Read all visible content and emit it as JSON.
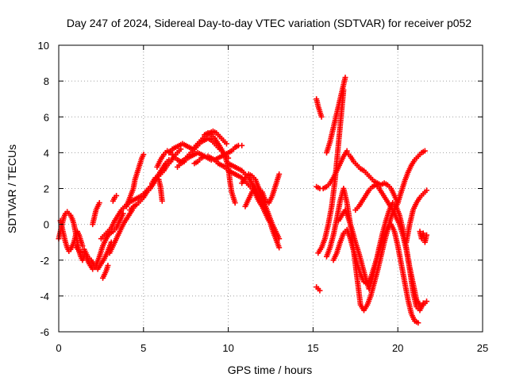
{
  "chart_data": {
    "type": "scatter",
    "title": "Day 247 of 2024, Sidereal Day-to-day VTEC variation (SDTVAR) for receiver p052",
    "xlabel": "GPS time / hours",
    "ylabel": "SDTVAR / TECUs",
    "xlim": [
      0,
      25
    ],
    "ylim": [
      -6,
      10
    ],
    "xticks": [
      0,
      5,
      10,
      15,
      20,
      25
    ],
    "yticks": [
      -6,
      -4,
      -2,
      0,
      2,
      4,
      6,
      8,
      10
    ],
    "xtick_labels": [
      "0",
      "5",
      "10",
      "15",
      "20",
      "25"
    ],
    "ytick_labels": [
      "-6",
      "-4",
      "-2",
      "0",
      "2",
      "4",
      "6",
      "8",
      "10"
    ],
    "grid": true,
    "marker": "+",
    "color": "#ff0000",
    "series": [
      {
        "x": [
          0.0,
          0.1,
          0.2,
          0.3,
          0.4,
          0.5,
          0.6,
          0.7,
          0.8,
          0.9,
          1.0,
          1.1,
          1.2,
          1.3,
          1.4,
          1.5
        ],
        "y": [
          -0.8,
          -0.4,
          0.0,
          0.4,
          0.6,
          0.7,
          0.6,
          0.5,
          0.3,
          0.0,
          -0.5,
          -1.0,
          -1.5,
          -1.8,
          -2.0,
          -1.8
        ]
      },
      {
        "x": [
          0.1,
          0.2,
          0.3,
          0.4,
          0.5,
          0.6,
          0.7,
          0.8,
          0.9,
          1.0,
          1.1,
          1.2,
          1.3,
          1.4
        ],
        "y": [
          0.2,
          -0.2,
          -0.6,
          -1.0,
          -1.3,
          -1.5,
          -1.4,
          -1.2,
          -1.0,
          -0.6,
          -0.4,
          -0.6,
          -0.9,
          -1.2
        ]
      },
      {
        "x": [
          1.0,
          1.2,
          1.4,
          1.6,
          1.8,
          2.0,
          2.2,
          2.4,
          2.6,
          2.8,
          3.0,
          3.2,
          3.4,
          3.6,
          3.8
        ],
        "y": [
          -1.2,
          -1.5,
          -1.6,
          -1.8,
          -2.2,
          -2.5,
          -2.3,
          -1.8,
          -1.2,
          -0.8,
          -0.5,
          -0.4,
          -0.2,
          0.2,
          0.6
        ]
      },
      {
        "x": [
          1.5,
          1.7,
          1.9,
          2.1,
          2.3,
          2.5,
          2.7,
          2.9,
          3.1
        ],
        "y": [
          -1.4,
          -1.8,
          -2.0,
          -2.3,
          -2.5,
          -2.2,
          -1.9,
          -1.5,
          -1.0
        ]
      },
      {
        "x": [
          2.0,
          2.1,
          2.2,
          2.3,
          2.4
        ],
        "y": [
          0.0,
          0.4,
          0.8,
          1.0,
          1.2
        ]
      },
      {
        "x": [
          2.6,
          2.7,
          2.8,
          2.9
        ],
        "y": [
          -3.0,
          -2.8,
          -2.6,
          -2.3
        ]
      },
      {
        "x": [
          2.5,
          2.7,
          2.9,
          3.1,
          3.3,
          3.5,
          3.7,
          3.9,
          4.1,
          4.3,
          4.5,
          4.7,
          4.9,
          5.1,
          5.3,
          5.5,
          5.7,
          5.9,
          6.1,
          6.3,
          6.5
        ],
        "y": [
          -0.8,
          -0.6,
          -0.4,
          -0.2,
          0.2,
          0.5,
          0.8,
          1.0,
          1.2,
          1.3,
          1.4,
          1.5,
          1.6,
          1.8,
          2.0,
          2.2,
          2.5,
          2.8,
          3.1,
          3.4,
          3.6
        ]
      },
      {
        "x": [
          3.0,
          3.2,
          3.4,
          3.6,
          3.8,
          4.0,
          4.2,
          4.4
        ],
        "y": [
          -1.6,
          -1.2,
          -0.8,
          -0.4,
          0.0,
          0.3,
          0.6,
          0.9
        ]
      },
      {
        "x": [
          3.2,
          3.3,
          3.4
        ],
        "y": [
          1.3,
          1.5,
          1.6
        ]
      },
      {
        "x": [
          4.0,
          4.2,
          4.4,
          4.5,
          4.6,
          4.7,
          4.8,
          4.9,
          5.0
        ],
        "y": [
          1.0,
          1.5,
          2.0,
          2.5,
          2.8,
          3.1,
          3.4,
          3.7,
          3.9
        ]
      },
      {
        "x": [
          4.2,
          4.4,
          4.6,
          4.8,
          5.0,
          5.2,
          5.4,
          5.6,
          5.8,
          6.0,
          6.2,
          6.4,
          6.6,
          6.8,
          7.0,
          7.2
        ],
        "y": [
          0.8,
          1.0,
          1.1,
          1.3,
          1.5,
          1.8,
          2.0,
          2.3,
          2.6,
          2.8,
          3.0,
          3.3,
          3.5,
          3.8,
          4.0,
          4.2
        ]
      },
      {
        "x": [
          5.5,
          5.7,
          5.9,
          6.0,
          6.1
        ],
        "y": [
          2.3,
          2.6,
          2.5,
          2.1,
          1.3
        ]
      },
      {
        "x": [
          5.8,
          6.0,
          6.2,
          6.4,
          6.6,
          6.8,
          7.0,
          7.2,
          7.4,
          7.6,
          7.8,
          8.0,
          8.2,
          8.4,
          8.6,
          8.8,
          9.0,
          9.2,
          9.4,
          9.6,
          9.8,
          10.0
        ],
        "y": [
          3.2,
          3.6,
          3.9,
          4.1,
          4.0,
          3.8,
          3.6,
          3.5,
          3.6,
          3.8,
          4.0,
          4.2,
          4.4,
          4.6,
          4.7,
          4.8,
          4.7,
          4.5,
          4.3,
          4.1,
          3.9,
          3.7
        ]
      },
      {
        "x": [
          6.5,
          6.7,
          6.9,
          7.1,
          7.3,
          7.5,
          7.7,
          7.9,
          8.1,
          8.3,
          8.5,
          8.7,
          8.9,
          9.1,
          9.3,
          9.5,
          9.7,
          9.9
        ],
        "y": [
          4.0,
          4.2,
          4.3,
          4.4,
          4.5,
          4.4,
          4.3,
          4.2,
          4.4,
          4.6,
          4.8,
          5.0,
          5.1,
          5.2,
          5.1,
          4.9,
          4.7,
          4.5
        ]
      },
      {
        "x": [
          7.0,
          7.2,
          7.4,
          7.6,
          7.8,
          8.0,
          8.2,
          8.4,
          8.6,
          8.8,
          9.0,
          9.2,
          9.4,
          9.6,
          9.8,
          10.0,
          10.2,
          10.4,
          10.6,
          10.8
        ],
        "y": [
          3.2,
          3.4,
          3.5,
          3.7,
          3.8,
          3.9,
          4.0,
          3.9,
          3.8,
          3.7,
          3.6,
          3.6,
          3.7,
          3.8,
          3.9,
          4.0,
          4.1,
          4.3,
          4.4,
          4.4
        ]
      },
      {
        "x": [
          8.0,
          8.2,
          8.4,
          8.6,
          8.8,
          9.0,
          9.2,
          9.4,
          9.6,
          9.8,
          10.0,
          10.2,
          10.4,
          10.6,
          10.8,
          11.0,
          11.2,
          11.4,
          11.6,
          11.8,
          12.0,
          12.2,
          12.4
        ],
        "y": [
          3.4,
          3.5,
          3.7,
          3.8,
          3.8,
          3.7,
          3.6,
          3.4,
          3.3,
          3.2,
          3.0,
          2.9,
          2.8,
          2.7,
          2.6,
          2.4,
          2.2,
          2.0,
          1.7,
          1.3,
          1.0,
          0.6,
          0.2
        ]
      },
      {
        "x": [
          8.6,
          8.8,
          9.0,
          9.2,
          9.4,
          9.6,
          9.8,
          10.0,
          10.1,
          10.2,
          10.3,
          10.4
        ],
        "y": [
          5.0,
          5.1,
          5.0,
          4.8,
          4.5,
          4.2,
          3.8,
          3.2,
          2.4,
          1.8,
          1.5,
          1.2
        ]
      },
      {
        "x": [
          10.0,
          10.2,
          10.4,
          10.6,
          10.8,
          11.0,
          11.2,
          11.4,
          11.6,
          11.8,
          12.0,
          12.2,
          12.4,
          12.6,
          12.8,
          13.0
        ],
        "y": [
          3.4,
          3.3,
          3.2,
          3.1,
          3.0,
          2.8,
          2.6,
          2.3,
          2.0,
          1.6,
          1.2,
          0.8,
          0.3,
          -0.3,
          -0.8,
          -1.3
        ]
      },
      {
        "x": [
          10.8,
          11.0,
          11.2,
          11.4,
          11.6,
          11.8,
          12.0,
          12.2,
          12.4,
          12.6,
          12.8,
          13.0
        ],
        "y": [
          2.3,
          2.6,
          2.8,
          2.7,
          2.5,
          2.0,
          1.5,
          1.0,
          0.5,
          0.0,
          -0.4,
          -0.8
        ]
      },
      {
        "x": [
          11.0,
          11.2,
          11.4,
          11.6,
          11.8,
          12.0,
          12.2,
          12.4,
          12.6,
          12.8,
          13.0
        ],
        "y": [
          1.0,
          1.4,
          1.8,
          2.0,
          2.0,
          1.8,
          1.3,
          1.2,
          1.6,
          2.2,
          2.8
        ]
      },
      {
        "x": [
          15.2,
          15.3,
          15.4,
          15.5
        ],
        "y": [
          7.0,
          6.6,
          6.3,
          6.0
        ]
      },
      {
        "x": [
          15.2,
          15.3,
          15.4
        ],
        "y": [
          -3.5,
          -3.6,
          -3.7
        ]
      },
      {
        "x": [
          15.2,
          15.4,
          15.6,
          15.8,
          16.0,
          16.2,
          16.4,
          16.6,
          16.8,
          17.0
        ],
        "y": [
          2.1,
          2.0,
          2.0,
          2.1,
          2.3,
          2.6,
          3.0,
          3.4,
          3.8,
          4.1
        ]
      },
      {
        "x": [
          15.3,
          15.5,
          15.7,
          15.9,
          16.1,
          16.3,
          16.5,
          16.7,
          16.8
        ],
        "y": [
          -1.6,
          -1.3,
          -0.8,
          0.0,
          1.0,
          2.5,
          4.5,
          6.5,
          7.5
        ]
      },
      {
        "x": [
          15.8,
          15.9,
          16.0,
          16.1,
          16.2,
          16.3,
          16.4,
          16.5,
          16.6,
          16.7,
          16.8,
          16.9
        ],
        "y": [
          4.0,
          4.3,
          4.6,
          5.0,
          5.4,
          5.8,
          6.2,
          6.6,
          7.0,
          7.4,
          7.8,
          8.2
        ]
      },
      {
        "x": [
          15.8,
          16.0,
          16.2,
          16.4,
          16.6,
          16.8,
          17.0,
          17.2,
          17.4,
          17.6,
          17.8,
          18.0,
          18.2,
          18.4,
          18.6,
          18.8,
          19.0,
          19.2,
          19.4,
          19.6,
          19.8,
          20.0,
          20.2,
          20.4,
          20.6,
          20.8,
          21.0,
          21.2,
          21.4,
          21.6
        ],
        "y": [
          -1.8,
          -1.3,
          -0.6,
          0.3,
          1.3,
          2.0,
          1.2,
          0.0,
          -1.5,
          -3.0,
          -4.5,
          -4.8,
          -4.5,
          -4.0,
          -3.3,
          -2.6,
          -1.8,
          -1.0,
          -0.3,
          0.4,
          0.8,
          1.2,
          1.8,
          2.4,
          2.9,
          3.3,
          3.6,
          3.8,
          4.0,
          4.1
        ]
      },
      {
        "x": [
          16.5,
          16.7,
          16.9,
          17.1,
          17.3,
          17.5,
          17.7,
          17.9,
          18.1,
          18.3,
          18.5,
          18.7,
          18.9,
          19.1,
          19.3,
          19.5,
          19.7,
          19.9,
          20.1,
          20.3,
          20.5,
          20.7,
          20.9,
          21.1,
          21.3,
          21.5
        ],
        "y": [
          0.2,
          0.5,
          0.8,
          0.3,
          -0.3,
          -1.0,
          -1.6,
          -2.3,
          -3.0,
          -3.6,
          -3.0,
          -2.2,
          -1.3,
          -0.5,
          0.2,
          0.8,
          1.2,
          1.0,
          0.5,
          -0.3,
          -1.3,
          -2.5,
          -3.8,
          -4.6,
          -4.8,
          -4.4
        ]
      },
      {
        "x": [
          17.0,
          17.2,
          17.4,
          17.6,
          17.8,
          18.0,
          18.2,
          18.4,
          18.6,
          18.8,
          19.0,
          19.2,
          19.4,
          19.6,
          19.8,
          20.0
        ],
        "y": [
          4.0,
          3.8,
          3.5,
          3.3,
          3.1,
          3.0,
          2.8,
          2.6,
          2.4,
          2.3,
          2.2,
          2.3,
          2.2,
          2.0,
          1.6,
          1.2
        ]
      },
      {
        "x": [
          17.5,
          17.7,
          17.9,
          18.1,
          18.3,
          18.5,
          18.7,
          18.9,
          19.1,
          19.3,
          19.5,
          19.7,
          19.9,
          20.1,
          20.3,
          20.5,
          20.7,
          20.9,
          21.1,
          21.3,
          21.5,
          21.7
        ],
        "y": [
          0.8,
          1.0,
          1.3,
          1.6,
          1.9,
          2.1,
          2.2,
          2.0,
          1.7,
          1.4,
          1.1,
          0.8,
          0.4,
          0.0,
          -0.6,
          -1.4,
          -2.4,
          -3.3,
          -4.2,
          -4.5,
          -4.5,
          -4.3
        ]
      },
      {
        "x": [
          16.2,
          16.4,
          16.6,
          16.8,
          17.0,
          17.2,
          17.4,
          17.6,
          17.8,
          18.0,
          18.2,
          18.4,
          18.6,
          18.8,
          19.0,
          19.2,
          19.4,
          19.6,
          19.8,
          20.0,
          20.2,
          20.4,
          20.6,
          20.8,
          21.0,
          21.2
        ],
        "y": [
          -2.0,
          -1.6,
          -1.0,
          -0.5,
          -0.3,
          -0.8,
          -1.5,
          -2.2,
          -2.8,
          -3.2,
          -3.3,
          -3.0,
          -2.4,
          -1.8,
          -1.2,
          -0.6,
          -0.2,
          0.0,
          -0.4,
          -1.2,
          -2.2,
          -3.2,
          -4.2,
          -5.0,
          -5.4,
          -5.5
        ]
      },
      {
        "x": [
          20.5,
          20.7,
          20.9,
          21.1,
          21.3,
          21.5,
          21.6,
          21.7
        ],
        "y": [
          -1.0,
          0.0,
          0.8,
          1.2,
          1.5,
          1.7,
          1.8,
          1.9
        ]
      },
      {
        "x": [
          21.3,
          21.4,
          21.5,
          21.6,
          21.7
        ],
        "y": [
          -0.4,
          -0.8,
          -0.5,
          -1.0,
          -0.6
        ]
      }
    ]
  }
}
